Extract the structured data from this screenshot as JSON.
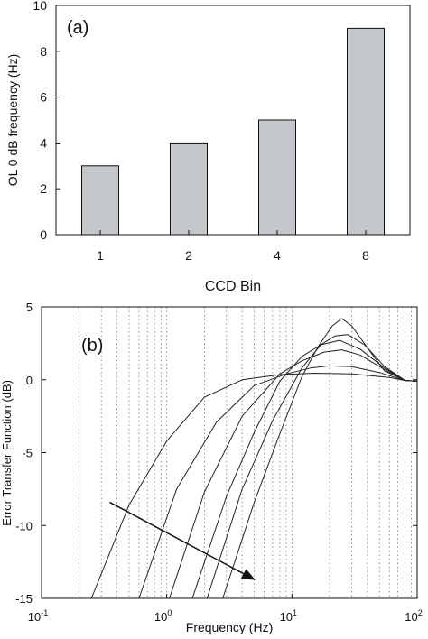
{
  "chart_data": [
    {
      "type": "bar",
      "panel_label": "(a)",
      "categories": [
        "1",
        "2",
        "4",
        "8"
      ],
      "values": [
        3,
        4,
        5,
        9
      ],
      "xlabel": "CCD Bin",
      "ylabel": "OL 0 dB frequency (Hz)",
      "ylim": [
        0,
        10
      ],
      "yticks": [
        "0",
        "2",
        "4",
        "6",
        "8",
        "10"
      ],
      "grid": false,
      "bar_color": "#c4c7cb"
    },
    {
      "type": "line",
      "panel_label": "(b)",
      "xlabel": "Frequency (Hz)",
      "ylabel": "Error Transfer Function (dB)",
      "x_scale": "log",
      "xlim": [
        0.1,
        100
      ],
      "ylim": [
        -15,
        5
      ],
      "xtick_labels": [
        {
          "base": "10",
          "exp": "-1"
        },
        {
          "base": "10",
          "exp": "0"
        },
        {
          "base": "10",
          "exp": "1"
        },
        {
          "base": "10",
          "exp": "2"
        }
      ],
      "yticks": [
        "-15",
        "-10",
        "-5",
        "0",
        "5"
      ],
      "grid": "vertical dotted",
      "arrow": {
        "from": {
          "x": 0.35,
          "y": -8.4
        },
        "to": {
          "x": 5.0,
          "y": -13.7
        }
      },
      "series": [
        {
          "x": [
            0.25,
            0.5,
            1.0,
            2.0,
            4.0,
            8.0,
            15,
            30,
            60,
            80,
            100
          ],
          "y": [
            -15,
            -8.6,
            -4.2,
            -1.2,
            0.0,
            0.35,
            0.45,
            0.4,
            0.15,
            -0.05,
            -0.1
          ]
        },
        {
          "x": [
            0.6,
            1.2,
            2.5,
            5.0,
            9.0,
            14,
            20,
            30,
            50,
            80,
            100
          ],
          "y": [
            -15,
            -7.5,
            -2.9,
            -0.4,
            0.4,
            0.8,
            0.95,
            0.9,
            0.5,
            -0.05,
            -0.1
          ]
        },
        {
          "x": [
            1.05,
            2.0,
            4.0,
            8.0,
            12,
            18,
            25,
            35,
            55,
            80,
            100
          ],
          "y": [
            -15,
            -7.7,
            -2.5,
            0.4,
            1.3,
            1.9,
            2.05,
            1.7,
            0.7,
            -0.05,
            -0.1
          ]
        },
        {
          "x": [
            1.6,
            3.0,
            5.0,
            8.0,
            12,
            17,
            24,
            35,
            55,
            80,
            100
          ],
          "y": [
            -15,
            -8.0,
            -3.6,
            -0.1,
            1.6,
            2.4,
            2.7,
            2.1,
            0.8,
            -0.05,
            -0.1
          ]
        },
        {
          "x": [
            2.1,
            4.0,
            7.0,
            12,
            17,
            22,
            28,
            38,
            55,
            80,
            100
          ],
          "y": [
            -15,
            -7.5,
            -2.8,
            0.8,
            2.4,
            3.0,
            3.1,
            2.4,
            0.9,
            -0.05,
            -0.1
          ]
        },
        {
          "x": [
            2.8,
            5.0,
            8.0,
            12,
            16,
            21,
            25,
            30,
            40,
            55,
            80,
            100
          ],
          "y": [
            -15,
            -8.4,
            -3.7,
            0.2,
            2.2,
            3.7,
            4.2,
            3.7,
            2.2,
            0.6,
            -0.05,
            -0.1
          ]
        }
      ]
    }
  ]
}
